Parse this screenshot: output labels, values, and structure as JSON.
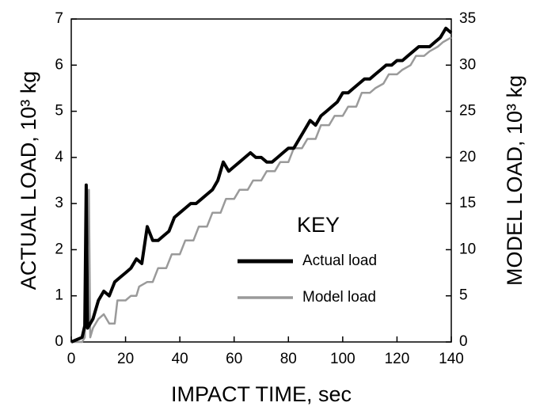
{
  "chart_data": {
    "type": "line",
    "xlabel": "IMPACT TIME, sec",
    "ylabel": "ACTUAL LOAD, 10³ kg",
    "y2label": "MODEL LOAD, 10³ kg",
    "xlim": [
      0,
      140
    ],
    "xticks": [
      0,
      20,
      40,
      60,
      80,
      100,
      120,
      140
    ],
    "ylim": [
      0,
      7
    ],
    "yticks": [
      0,
      1,
      2,
      3,
      4,
      5,
      6,
      7
    ],
    "y2lim": [
      0,
      35
    ],
    "y2ticks": [
      0,
      5,
      10,
      15,
      20,
      25,
      30,
      35
    ],
    "legend_title": "KEY",
    "series": [
      {
        "name": "Actual load",
        "color": "#000000",
        "x": [
          0,
          2,
          4,
          5,
          5.5,
          6,
          8,
          10,
          12,
          14,
          16,
          18,
          20,
          22,
          24,
          26,
          28,
          30,
          32,
          34,
          36,
          38,
          40,
          42,
          44,
          46,
          48,
          50,
          52,
          54,
          56,
          58,
          60,
          62,
          64,
          66,
          68,
          70,
          72,
          74,
          76,
          78,
          80,
          82,
          84,
          86,
          88,
          90,
          92,
          94,
          96,
          98,
          100,
          102,
          104,
          106,
          108,
          110,
          112,
          114,
          116,
          118,
          120,
          122,
          124,
          126,
          128,
          130,
          132,
          134,
          136,
          138,
          140
        ],
        "values": [
          0,
          0.05,
          0.1,
          0.35,
          3.4,
          0.3,
          0.5,
          0.9,
          1.1,
          1.0,
          1.3,
          1.4,
          1.5,
          1.6,
          1.8,
          1.7,
          2.5,
          2.2,
          2.2,
          2.3,
          2.4,
          2.7,
          2.8,
          2.9,
          3.0,
          3.0,
          3.1,
          3.2,
          3.3,
          3.5,
          3.9,
          3.7,
          3.8,
          3.9,
          4.0,
          4.1,
          4.0,
          4.0,
          3.9,
          3.9,
          4.0,
          4.1,
          4.2,
          4.2,
          4.4,
          4.6,
          4.8,
          4.7,
          4.9,
          5.0,
          5.1,
          5.2,
          5.4,
          5.4,
          5.5,
          5.6,
          5.7,
          5.7,
          5.8,
          5.9,
          6.0,
          6.0,
          6.1,
          6.1,
          6.2,
          6.3,
          6.4,
          6.4,
          6.4,
          6.5,
          6.6,
          6.8,
          6.7
        ]
      },
      {
        "name": "Model load",
        "color": "#9a9a9a",
        "axis": "y2",
        "x": [
          0,
          4,
          5,
          6.5,
          7,
          8,
          10,
          12,
          14,
          16,
          17,
          20,
          22,
          24,
          25,
          28,
          30,
          32,
          35,
          37,
          40,
          42,
          45,
          47,
          50,
          52,
          55,
          57,
          60,
          62,
          65,
          67,
          70,
          72,
          75,
          77,
          80,
          82,
          85,
          87,
          90,
          92,
          95,
          97,
          100,
          102,
          105,
          107,
          110,
          112,
          115,
          117,
          120,
          122,
          125,
          127,
          130,
          132,
          135,
          137,
          140
        ],
        "values": [
          0,
          0,
          0.5,
          16.5,
          0.5,
          1.5,
          2.5,
          3,
          2,
          2,
          4.5,
          4.5,
          5,
          5,
          6,
          6.5,
          6.5,
          8,
          8,
          9.5,
          9.5,
          11,
          11,
          12.5,
          12.5,
          14,
          14,
          15.5,
          15.5,
          16.5,
          16.5,
          17.5,
          17.5,
          18.5,
          18.5,
          19.5,
          19.5,
          21,
          21,
          22,
          22,
          23.5,
          23.5,
          24.5,
          24.5,
          25.5,
          25.5,
          27,
          27,
          27.5,
          28,
          29,
          29,
          29.5,
          30,
          31,
          31,
          31.5,
          32,
          32.5,
          33
        ]
      }
    ]
  }
}
